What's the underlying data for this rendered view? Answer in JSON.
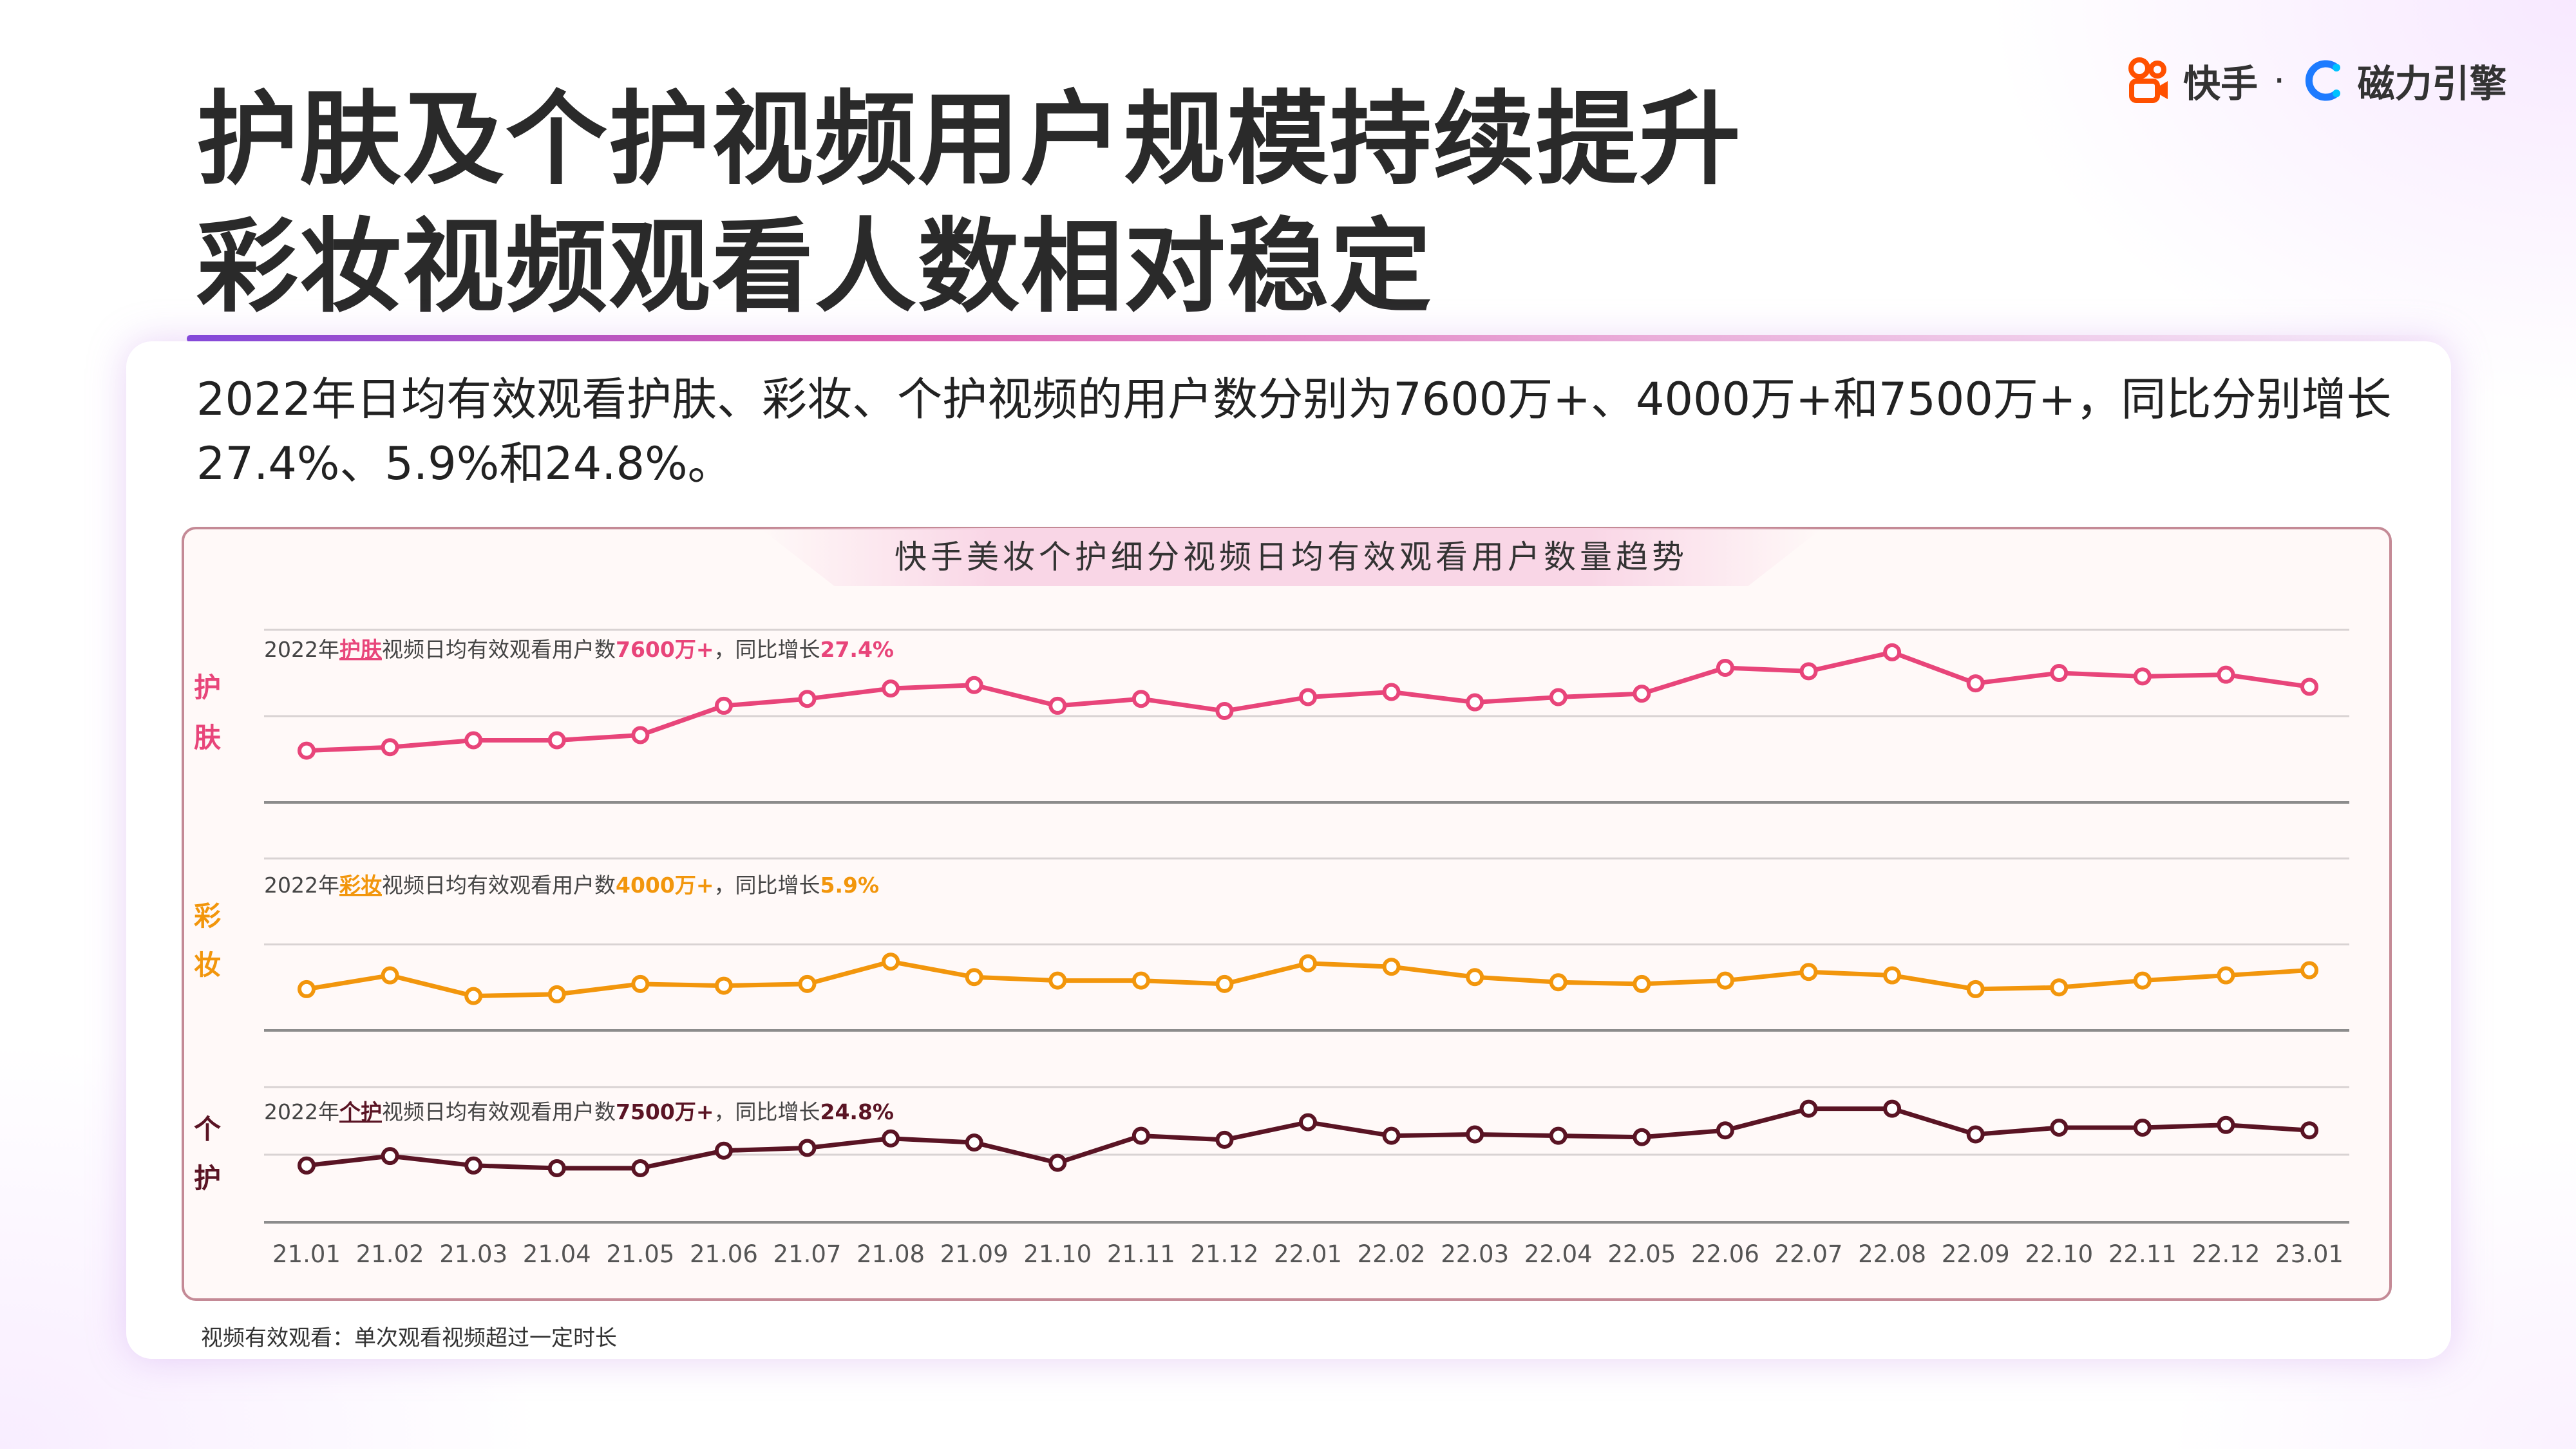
{
  "title": {
    "line1": "护肤及个护视频用户规模持续提升",
    "line2": "彩妆视频观看人数相对稳定"
  },
  "logo": {
    "brand1": "快手",
    "separator": "·",
    "brand2": "磁力引擎"
  },
  "summary": "2022年日均有效观看护肤、彩妆、个护视频的用户数分别为7600万+、4000万+和7500万+，同比分别增长27.4%、5.9%和24.8%。",
  "footnote": "视频有效观看：单次观看视频超过一定时长",
  "colors": {
    "skincare": "#e8457a",
    "makeup": "#f2960c",
    "personal": "#5a1424"
  },
  "chart_data": {
    "type": "line",
    "title": "快手美妆个护细分视频日均有效观看用户数量趋势",
    "categories": [
      "21.01",
      "21.02",
      "21.03",
      "21.04",
      "21.05",
      "21.06",
      "21.07",
      "21.08",
      "21.09",
      "21.10",
      "21.11",
      "21.12",
      "22.01",
      "22.02",
      "22.03",
      "22.04",
      "22.05",
      "22.06",
      "22.07",
      "22.08",
      "22.09",
      "22.10",
      "22.11",
      "22.12",
      "23.01"
    ],
    "panels": [
      {
        "key": "skincare",
        "side_label": [
          "护",
          "肤"
        ],
        "annotation": {
          "prefix": "2022年",
          "category": "护肤",
          "mid": "视频日均有效观看用户数",
          "value": "7600万+",
          "sep": "，同比增长",
          "growth": "27.4%"
        },
        "values": [
          0.3,
          0.32,
          0.36,
          0.36,
          0.39,
          0.56,
          0.6,
          0.66,
          0.68,
          0.56,
          0.6,
          0.53,
          0.61,
          0.64,
          0.58,
          0.61,
          0.63,
          0.78,
          0.76,
          0.87,
          0.69,
          0.75,
          0.73,
          0.74,
          0.67
        ]
      },
      {
        "key": "makeup",
        "side_label": [
          "彩",
          "妆"
        ],
        "annotation": {
          "prefix": "2022年",
          "category": "彩妆",
          "mid": "视频日均有效观看用户数",
          "value": "4000万+",
          "sep": "，同比增长",
          "growth": "5.9%"
        },
        "values": [
          0.24,
          0.32,
          0.2,
          0.21,
          0.27,
          0.26,
          0.27,
          0.4,
          0.31,
          0.29,
          0.29,
          0.27,
          0.39,
          0.37,
          0.31,
          0.28,
          0.27,
          0.29,
          0.34,
          0.32,
          0.24,
          0.25,
          0.29,
          0.32,
          0.35
        ]
      },
      {
        "key": "personal",
        "side_label": [
          "个",
          "护"
        ],
        "annotation": {
          "prefix": "2022年",
          "category": "个护",
          "mid": "视频日均有效观看用户数",
          "value": "7500万+",
          "sep": "，同比增长",
          "growth": "24.8%"
        },
        "values": [
          0.42,
          0.49,
          0.42,
          0.4,
          0.4,
          0.53,
          0.55,
          0.62,
          0.59,
          0.44,
          0.64,
          0.61,
          0.74,
          0.64,
          0.65,
          0.64,
          0.63,
          0.68,
          0.84,
          0.84,
          0.65,
          0.7,
          0.7,
          0.72,
          0.68
        ]
      }
    ],
    "grid": true
  }
}
